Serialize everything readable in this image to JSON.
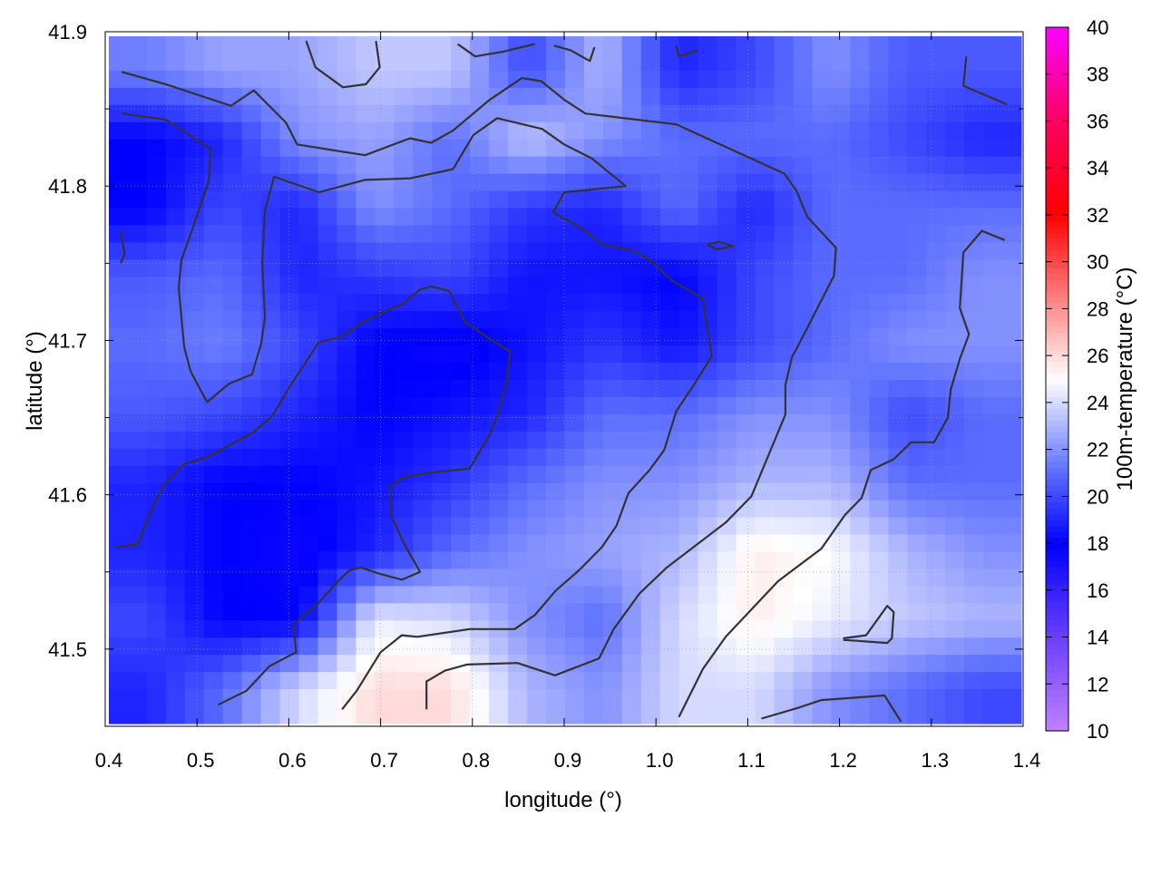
{
  "chart_data": {
    "type": "heatmap",
    "xlabel": "longitude (°)",
    "ylabel": "latitude (°)",
    "colorbar_label": "100m-temperature (°C)",
    "xlim": [
      0.4,
      1.4
    ],
    "ylim": [
      41.45,
      41.9
    ],
    "x_ticks": [
      "0.4",
      "0.5",
      "0.6",
      "0.7",
      "0.8",
      "0.9",
      "1.0",
      "1.1",
      "1.2",
      "1.3",
      "1.4"
    ],
    "y_ticks": [
      "41.5",
      "41.6",
      "41.7",
      "41.8",
      "41.9"
    ],
    "colorbar_ticks": [
      "10",
      "12",
      "14",
      "16",
      "18",
      "20",
      "22",
      "24",
      "26",
      "28",
      "30",
      "32",
      "34",
      "36",
      "38",
      "40"
    ],
    "colorbar_range": [
      10,
      40
    ],
    "grid": true,
    "colormap": [
      [
        10,
        "#c080ff"
      ],
      [
        14,
        "#6a40ff"
      ],
      [
        18,
        "#0000ff"
      ],
      [
        21,
        "#5a6cff"
      ],
      [
        25,
        "#ffffff"
      ],
      [
        28,
        "#ff9090"
      ],
      [
        32,
        "#ff0000"
      ],
      [
        36,
        "#ff0060"
      ],
      [
        40,
        "#ff00ff"
      ]
    ],
    "contour_color": "#333333",
    "grid_note_rows_top_to_bottom": true,
    "values": [
      [
        21.5,
        22.5,
        22.5,
        23.5,
        23.5,
        20,
        23,
        19,
        20,
        22,
        20.5,
        20.5
      ],
      [
        18,
        19,
        22,
        22.5,
        21,
        23.5,
        22,
        21,
        21,
        21,
        20,
        19
      ],
      [
        18,
        20,
        19,
        22,
        21,
        19.5,
        19,
        21,
        19,
        21,
        21,
        21
      ],
      [
        20.5,
        21,
        19,
        19.5,
        20,
        18.5,
        18.5,
        18,
        20,
        21,
        21,
        22
      ],
      [
        21,
        21.5,
        20,
        18,
        17.5,
        18.5,
        19.5,
        18.5,
        20,
        21,
        22,
        22
      ],
      [
        20.5,
        20,
        19,
        18,
        18.5,
        19,
        21,
        21,
        22,
        22,
        20,
        21
      ],
      [
        19,
        18,
        18,
        18.5,
        19.5,
        21,
        22,
        22,
        23,
        23,
        21,
        21
      ],
      [
        19,
        18,
        17.5,
        19,
        21,
        22,
        22.5,
        23,
        25.5,
        25,
        23,
        22
      ],
      [
        20,
        18,
        18,
        24.5,
        24,
        22,
        21,
        24,
        25.5,
        24.5,
        23.5,
        23
      ],
      [
        19,
        21,
        24,
        26,
        26,
        23,
        22,
        24,
        24,
        22,
        21,
        20
      ]
    ],
    "contours": [
      [
        [
          0.418,
          41.874
        ],
        [
          0.466,
          41.866
        ],
        [
          0.537,
          41.852
        ],
        [
          0.562,
          41.862
        ],
        [
          0.597,
          41.841
        ],
        [
          0.609,
          41.827
        ],
        [
          0.683,
          41.82
        ],
        [
          0.732,
          41.831
        ],
        [
          0.755,
          41.828
        ],
        [
          0.779,
          41.836
        ],
        [
          0.819,
          41.856
        ],
        [
          0.854,
          41.87
        ],
        [
          0.875,
          41.868
        ],
        [
          0.9,
          41.856
        ],
        [
          0.923,
          41.847
        ],
        [
          1.022,
          41.84
        ],
        [
          1.096,
          41.82
        ],
        [
          1.14,
          41.808
        ],
        [
          1.153,
          41.797
        ],
        [
          1.165,
          41.78
        ],
        [
          1.196,
          41.76
        ],
        [
          1.194,
          41.742
        ],
        [
          1.163,
          41.706
        ],
        [
          1.148,
          41.689
        ],
        [
          1.141,
          41.671
        ],
        [
          1.141,
          41.652
        ],
        [
          1.104,
          41.599
        ],
        [
          1.076,
          41.582
        ],
        [
          1.012,
          41.553
        ],
        [
          0.982,
          41.536
        ],
        [
          0.954,
          41.513
        ],
        [
          0.938,
          41.494
        ],
        [
          0.89,
          41.483
        ],
        [
          0.849,
          41.491
        ],
        [
          0.794,
          41.49
        ],
        [
          0.77,
          41.486
        ],
        [
          0.75,
          41.479
        ],
        [
          0.75,
          41.461
        ]
      ],
      [
        [
          0.418,
          41.847
        ],
        [
          0.466,
          41.843
        ],
        [
          0.515,
          41.824
        ],
        [
          0.513,
          41.804
        ],
        [
          0.496,
          41.774
        ],
        [
          0.483,
          41.752
        ],
        [
          0.48,
          41.734
        ],
        [
          0.486,
          41.696
        ],
        [
          0.493,
          41.68
        ],
        [
          0.511,
          41.66
        ],
        [
          0.535,
          41.672
        ],
        [
          0.56,
          41.678
        ],
        [
          0.57,
          41.698
        ],
        [
          0.574,
          41.715
        ],
        [
          0.571,
          41.75
        ],
        [
          0.574,
          41.784
        ],
        [
          0.584,
          41.806
        ],
        [
          0.633,
          41.796
        ],
        [
          0.683,
          41.804
        ],
        [
          0.732,
          41.805
        ],
        [
          0.779,
          41.811
        ],
        [
          0.801,
          41.833
        ],
        [
          0.827,
          41.844
        ],
        [
          0.876,
          41.837
        ],
        [
          0.9,
          41.827
        ],
        [
          0.93,
          41.818
        ],
        [
          0.967,
          41.8
        ],
        [
          0.918,
          41.797
        ],
        [
          0.9,
          41.796
        ],
        [
          0.888,
          41.783
        ],
        [
          0.918,
          41.773
        ],
        [
          0.942,
          41.762
        ],
        [
          0.972,
          41.759
        ],
        [
          0.994,
          41.752
        ],
        [
          1.017,
          41.739
        ],
        [
          1.051,
          41.727
        ],
        [
          1.061,
          41.69
        ],
        [
          1.041,
          41.671
        ],
        [
          1.022,
          41.654
        ],
        [
          1.009,
          41.629
        ],
        [
          0.993,
          41.616
        ],
        [
          0.97,
          41.601
        ],
        [
          0.957,
          41.58
        ],
        [
          0.941,
          41.566
        ],
        [
          0.916,
          41.551
        ],
        [
          0.891,
          41.538
        ],
        [
          0.868,
          41.522
        ],
        [
          0.846,
          41.513
        ],
        [
          0.797,
          41.513
        ],
        [
          0.74,
          41.508
        ],
        [
          0.723,
          41.509
        ],
        [
          0.7,
          41.498
        ],
        [
          0.674,
          41.473
        ],
        [
          0.658,
          41.461
        ]
      ],
      [
        [
          0.412,
          41.566
        ],
        [
          0.436,
          41.568
        ],
        [
          0.443,
          41.58
        ],
        [
          0.463,
          41.606
        ],
        [
          0.486,
          41.62
        ],
        [
          0.51,
          41.624
        ],
        [
          0.56,
          41.64
        ],
        [
          0.582,
          41.651
        ],
        [
          0.602,
          41.671
        ],
        [
          0.633,
          41.699
        ],
        [
          0.656,
          41.702
        ],
        [
          0.681,
          41.712
        ],
        [
          0.702,
          41.718
        ],
        [
          0.725,
          41.724
        ],
        [
          0.743,
          41.733
        ],
        [
          0.755,
          41.735
        ],
        [
          0.775,
          41.732
        ],
        [
          0.792,
          41.712
        ],
        [
          0.819,
          41.701
        ],
        [
          0.841,
          41.693
        ],
        [
          0.837,
          41.671
        ],
        [
          0.827,
          41.651
        ],
        [
          0.819,
          41.639
        ],
        [
          0.797,
          41.617
        ],
        [
          0.75,
          41.614
        ],
        [
          0.723,
          41.611
        ],
        [
          0.71,
          41.605
        ],
        [
          0.712,
          41.586
        ],
        [
          0.725,
          41.569
        ],
        [
          0.743,
          41.55
        ],
        [
          0.723,
          41.545
        ],
        [
          0.698,
          41.549
        ],
        [
          0.678,
          41.553
        ],
        [
          0.666,
          41.551
        ],
        [
          0.652,
          41.543
        ],
        [
          0.631,
          41.529
        ],
        [
          0.605,
          41.516
        ],
        [
          0.608,
          41.498
        ],
        [
          0.579,
          41.489
        ],
        [
          0.554,
          41.473
        ],
        [
          0.523,
          41.464
        ]
      ],
      [
        [
          1.025,
          41.456
        ],
        [
          1.051,
          41.487
        ],
        [
          1.076,
          41.508
        ],
        [
          1.133,
          41.544
        ],
        [
          1.18,
          41.565
        ],
        [
          1.206,
          41.587
        ],
        [
          1.224,
          41.598
        ],
        [
          1.234,
          41.616
        ],
        [
          1.259,
          41.623
        ],
        [
          1.278,
          41.634
        ],
        [
          1.303,
          41.634
        ],
        [
          1.318,
          41.65
        ],
        [
          1.321,
          41.668
        ],
        [
          1.331,
          41.688
        ],
        [
          1.341,
          41.704
        ],
        [
          1.331,
          41.721
        ],
        [
          1.335,
          41.757
        ],
        [
          1.355,
          41.771
        ],
        [
          1.38,
          41.765
        ]
      ],
      [
        [
          0.619,
          41.894
        ],
        [
          0.629,
          41.877
        ],
        [
          0.659,
          41.864
        ],
        [
          0.684,
          41.866
        ],
        [
          0.699,
          41.877
        ],
        [
          0.695,
          41.894
        ]
      ],
      [
        [
          0.784,
          41.892
        ],
        [
          0.803,
          41.884
        ],
        [
          0.833,
          41.887
        ],
        [
          0.868,
          41.892
        ]
      ],
      [
        [
          0.889,
          41.891
        ],
        [
          0.907,
          41.888
        ],
        [
          0.928,
          41.881
        ],
        [
          0.933,
          41.89
        ]
      ],
      [
        [
          1.022,
          41.891
        ],
        [
          1.025,
          41.884
        ],
        [
          1.046,
          41.888
        ]
      ],
      [
        [
          1.338,
          41.884
        ],
        [
          1.335,
          41.865
        ],
        [
          1.382,
          41.853
        ]
      ],
      [
        [
          1.056,
          41.762
        ],
        [
          1.068,
          41.764
        ],
        [
          1.084,
          41.761
        ],
        [
          1.066,
          41.759
        ],
        [
          1.056,
          41.762
        ]
      ],
      [
        [
          0.417,
          41.771
        ],
        [
          0.421,
          41.756
        ],
        [
          0.417,
          41.75
        ]
      ],
      [
        [
          1.204,
          41.507
        ],
        [
          1.229,
          41.509
        ],
        [
          1.252,
          41.528
        ],
        [
          1.259,
          41.524
        ],
        [
          1.257,
          41.507
        ],
        [
          1.252,
          41.504
        ],
        [
          1.204,
          41.506
        ]
      ],
      [
        [
          1.115,
          41.455
        ],
        [
          1.155,
          41.462
        ],
        [
          1.18,
          41.467
        ],
        [
          1.249,
          41.47
        ],
        [
          1.267,
          41.453
        ]
      ]
    ]
  }
}
